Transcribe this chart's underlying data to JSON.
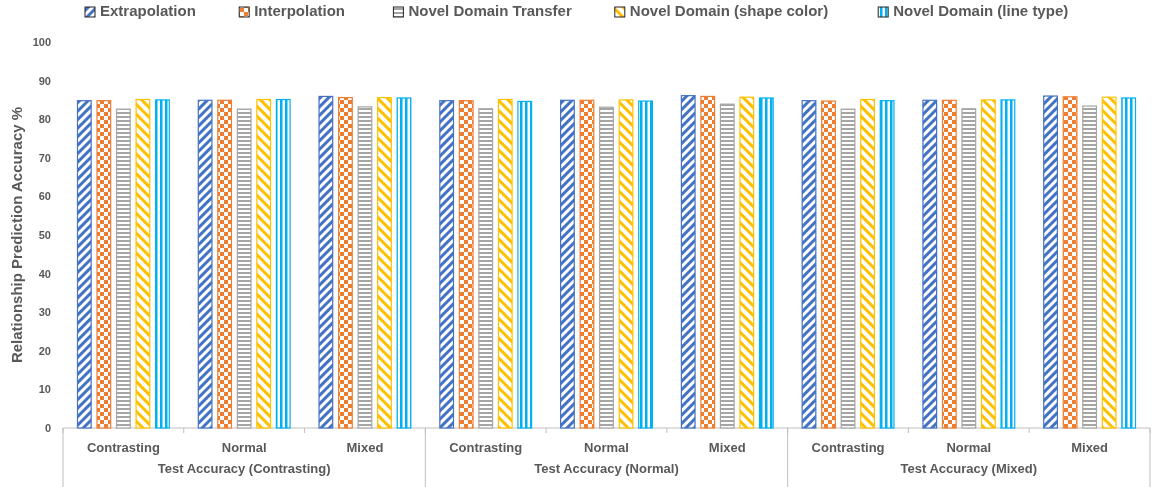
{
  "chart_data": {
    "type": "bar",
    "ylabel": "Relationship Prediction Accuracy %",
    "categories": [
      "Contrasting",
      "Normal",
      "Mixed",
      "Contrasting",
      "Normal",
      "Mixed",
      "Contrasting",
      "Normal",
      "Mixed"
    ],
    "annotations": [
      "Test Accuracy (Contrasting)",
      "Test Accuracy (Normal)",
      "Test Accuracy (Mixed)"
    ],
    "series": [
      {
        "name": "Extrapolation",
        "color": "#4472c4",
        "values": [
          84.8,
          84.9,
          85.9,
          84.8,
          84.9,
          86.1,
          84.8,
          84.9,
          86.0
        ]
      },
      {
        "name": "Interpolation",
        "color": "#ed7d31",
        "values": [
          84.8,
          84.9,
          85.6,
          84.8,
          84.9,
          85.9,
          84.7,
          84.9,
          85.8
        ]
      },
      {
        "name": "Novel Domain Transfer",
        "color": "#a5a5a5",
        "values": [
          82.6,
          82.6,
          83.2,
          82.7,
          83.1,
          83.9,
          82.6,
          82.7,
          83.4
        ]
      },
      {
        "name": "Novel Domain (shape color)",
        "color": "#ffc000",
        "values": [
          85.1,
          85.1,
          85.6,
          85.1,
          85.0,
          85.7,
          85.1,
          85.0,
          85.7
        ]
      },
      {
        "name": "Novel Domain (line type)",
        "color": "#00b0f0",
        "values": [
          85.0,
          85.1,
          85.5,
          84.6,
          84.7,
          85.5,
          84.8,
          85.0,
          85.5
        ]
      }
    ],
    "ylim": [
      0,
      100
    ],
    "yticks": [
      0,
      10,
      20,
      30,
      40,
      50,
      60,
      70,
      80,
      90,
      100
    ],
    "legend": "top"
  }
}
